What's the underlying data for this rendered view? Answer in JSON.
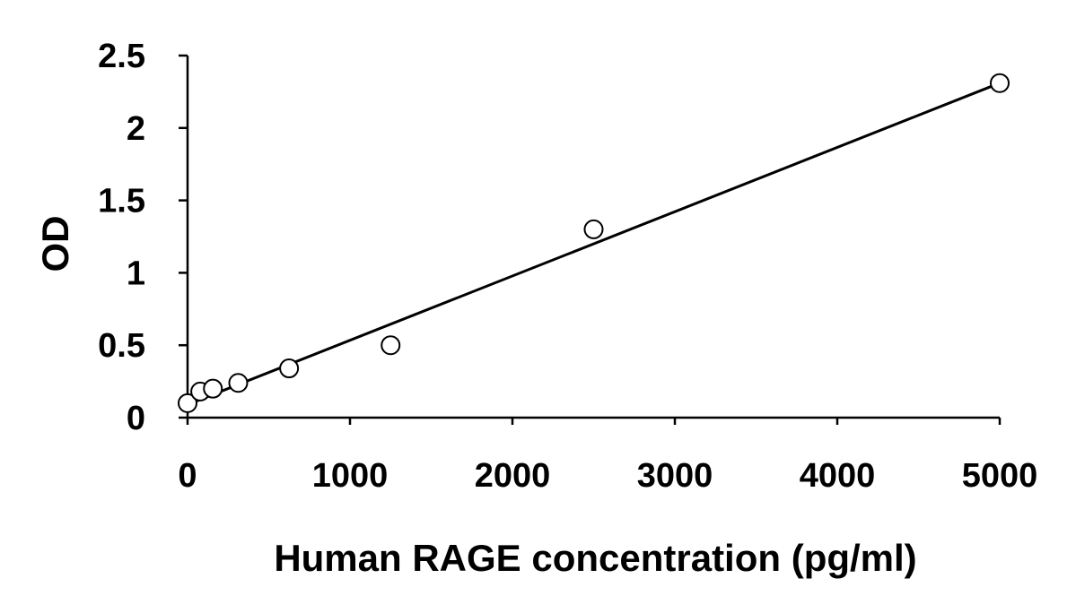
{
  "chart_data": {
    "type": "scatter",
    "xlabel": "Human RAGE concentration (pg/ml)",
    "ylabel": "OD",
    "xlim": [
      0,
      5000
    ],
    "ylim": [
      0,
      2.5
    ],
    "x_ticks": [
      0,
      1000,
      2000,
      3000,
      4000,
      5000
    ],
    "y_ticks": [
      0,
      0.5,
      1,
      1.5,
      2,
      2.5
    ],
    "x_tick_labels": [
      "0",
      "1000",
      "2000",
      "3000",
      "4000",
      "5000"
    ],
    "y_tick_labels": [
      "0",
      "0.5",
      "1",
      "1.5",
      "2",
      "2.5"
    ],
    "grid": false,
    "series": [
      {
        "marker": "open-circle",
        "x": [
          0,
          78,
          156,
          312,
          625,
          1250,
          2500,
          5000
        ],
        "y": [
          0.1,
          0.18,
          0.2,
          0.24,
          0.34,
          0.5,
          1.3,
          2.31
        ]
      }
    ],
    "fit_line": {
      "type": "linear",
      "x": [
        0,
        5000
      ],
      "y": [
        0.09,
        2.31
      ]
    }
  }
}
